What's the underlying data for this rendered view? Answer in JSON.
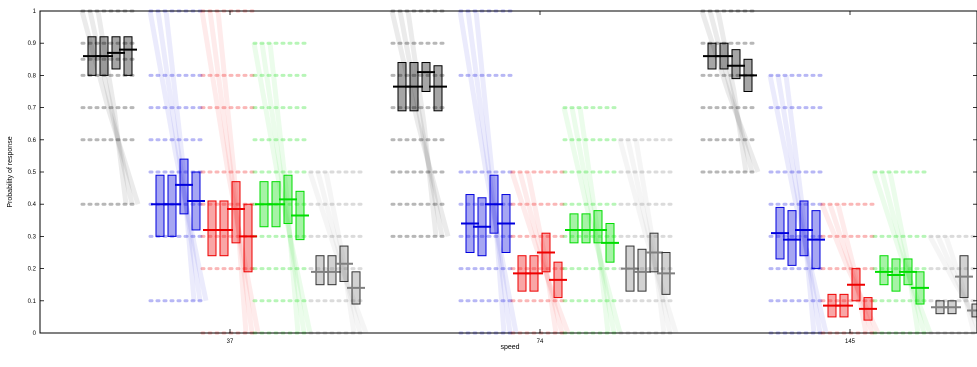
{
  "chart_data": {
    "type": "box",
    "xlabel": "speed",
    "ylabel": "Probability of response",
    "categories": [
      "37",
      "74",
      "145"
    ],
    "yticks": [
      "0",
      "0.1",
      "0.2",
      "0.3",
      "0.4",
      "0.5",
      "0.6",
      "0.7",
      "0.8",
      "0.9",
      "1"
    ],
    "ylim": [
      0,
      1
    ],
    "grid": false,
    "legend": "none",
    "colors": {
      "black": "#000000",
      "blue": "#0000dd",
      "red": "#ee0000",
      "green": "#00dd00",
      "gray": "#7f7f7f"
    },
    "series": [
      {
        "color": "black",
        "groups": [
          {
            "category": "37",
            "boxes": [
              [
                0.8,
                0.92,
                0.86
              ],
              [
                0.8,
                0.92,
                0.86
              ],
              [
                0.82,
                0.92,
                0.87
              ],
              [
                0.8,
                0.92,
                0.88
              ]
            ],
            "points": [
              1.0,
              0.9,
              0.85,
              0.8,
              0.7,
              0.6,
              0.4
            ]
          },
          {
            "category": "74",
            "boxes": [
              [
                0.69,
                0.84,
                0.765
              ],
              [
                0.69,
                0.84,
                0.765
              ],
              [
                0.75,
                0.84,
                0.81
              ],
              [
                0.69,
                0.83,
                0.765
              ]
            ],
            "points": [
              1.0,
              0.9,
              0.8,
              0.7,
              0.6,
              0.5,
              0.4,
              0.3
            ]
          },
          {
            "category": "145",
            "boxes": [
              [
                0.82,
                0.9,
                0.86
              ],
              [
                0.82,
                0.9,
                0.86
              ],
              [
                0.79,
                0.88,
                0.83
              ],
              [
                0.75,
                0.85,
                0.8
              ]
            ],
            "points": [
              1.0,
              0.9,
              0.8,
              0.7,
              0.6,
              0.5
            ]
          }
        ]
      },
      {
        "color": "blue",
        "groups": [
          {
            "category": "37",
            "boxes": [
              [
                0.3,
                0.49,
                0.4
              ],
              [
                0.3,
                0.49,
                0.4
              ],
              [
                0.37,
                0.54,
                0.46
              ],
              [
                0.32,
                0.5,
                0.41
              ]
            ],
            "points": [
              1.0,
              0.8,
              0.7,
              0.6,
              0.5,
              0.4,
              0.3,
              0.1
            ]
          },
          {
            "category": "74",
            "boxes": [
              [
                0.25,
                0.43,
                0.34
              ],
              [
                0.24,
                0.42,
                0.33
              ],
              [
                0.31,
                0.49,
                0.4
              ],
              [
                0.25,
                0.43,
                0.34
              ]
            ],
            "points": [
              1.0,
              0.8,
              0.5,
              0.4,
              0.3,
              0.2,
              0.1,
              0.0
            ]
          },
          {
            "category": "145",
            "boxes": [
              [
                0.23,
                0.39,
                0.31
              ],
              [
                0.21,
                0.38,
                0.29
              ],
              [
                0.24,
                0.41,
                0.32
              ],
              [
                0.2,
                0.38,
                0.29
              ]
            ],
            "points": [
              0.8,
              0.7,
              0.5,
              0.4,
              0.3,
              0.2,
              0.1,
              0.0
            ]
          }
        ]
      },
      {
        "color": "red",
        "groups": [
          {
            "category": "37",
            "boxes": [
              [
                0.24,
                0.41,
                0.32
              ],
              [
                0.24,
                0.41,
                0.32
              ],
              [
                0.28,
                0.47,
                0.385
              ],
              [
                0.19,
                0.4,
                0.3
              ]
            ],
            "points": [
              1.0,
              0.8,
              0.7,
              0.5,
              0.4,
              0.3,
              0.2,
              0.0
            ]
          },
          {
            "category": "74",
            "boxes": [
              [
                0.13,
                0.24,
                0.185
              ],
              [
                0.13,
                0.24,
                0.185
              ],
              [
                0.19,
                0.31,
                0.25
              ],
              [
                0.11,
                0.22,
                0.165
              ]
            ],
            "points": [
              0.5,
              0.4,
              0.3,
              0.2,
              0.1,
              0.0
            ]
          },
          {
            "category": "145",
            "boxes": [
              [
                0.05,
                0.12,
                0.085
              ],
              [
                0.05,
                0.12,
                0.085
              ],
              [
                0.1,
                0.2,
                0.15
              ],
              [
                0.04,
                0.11,
                0.075
              ]
            ],
            "points": [
              0.4,
              0.3,
              0.2,
              0.1,
              0.0
            ]
          }
        ]
      },
      {
        "color": "green",
        "groups": [
          {
            "category": "37",
            "boxes": [
              [
                0.33,
                0.47,
                0.4
              ],
              [
                0.33,
                0.47,
                0.4
              ],
              [
                0.34,
                0.49,
                0.415
              ],
              [
                0.29,
                0.44,
                0.365
              ]
            ],
            "points": [
              0.9,
              0.8,
              0.7,
              0.6,
              0.5,
              0.4,
              0.3,
              0.2,
              0.1,
              0.0
            ]
          },
          {
            "category": "74",
            "boxes": [
              [
                0.28,
                0.37,
                0.32
              ],
              [
                0.28,
                0.37,
                0.32
              ],
              [
                0.28,
                0.38,
                0.32
              ],
              [
                0.22,
                0.34,
                0.28
              ]
            ],
            "points": [
              0.7,
              0.6,
              0.5,
              0.4,
              0.3,
              0.2,
              0.1,
              0.0
            ]
          },
          {
            "category": "145",
            "boxes": [
              [
                0.15,
                0.24,
                0.19
              ],
              [
                0.13,
                0.23,
                0.18
              ],
              [
                0.15,
                0.23,
                0.19
              ],
              [
                0.09,
                0.19,
                0.14
              ]
            ],
            "points": [
              0.5,
              0.3,
              0.2,
              0.1,
              0.0
            ]
          }
        ]
      },
      {
        "color": "gray",
        "groups": [
          {
            "category": "37",
            "boxes": [
              [
                0.15,
                0.24,
                0.19
              ],
              [
                0.15,
                0.24,
                0.19
              ],
              [
                0.16,
                0.27,
                0.215
              ],
              [
                0.09,
                0.19,
                0.14
              ]
            ],
            "points": [
              0.5,
              0.4,
              0.3,
              0.2,
              0.1,
              0.0
            ]
          },
          {
            "category": "74",
            "boxes": [
              [
                0.13,
                0.27,
                0.2
              ],
              [
                0.13,
                0.26,
                0.19
              ],
              [
                0.19,
                0.31,
                0.25
              ],
              [
                0.12,
                0.25,
                0.185
              ]
            ],
            "points": [
              0.6,
              0.5,
              0.4,
              0.3,
              0.2,
              0.1,
              0.0
            ]
          },
          {
            "category": "145",
            "boxes": [
              [
                0.06,
                0.1,
                0.08
              ],
              [
                0.06,
                0.1,
                0.08
              ],
              [
                0.11,
                0.24,
                0.175
              ],
              [
                0.05,
                0.09,
                0.07
              ]
            ],
            "points": [
              0.3,
              0.2,
              0.1,
              0.0
            ]
          }
        ]
      }
    ]
  }
}
